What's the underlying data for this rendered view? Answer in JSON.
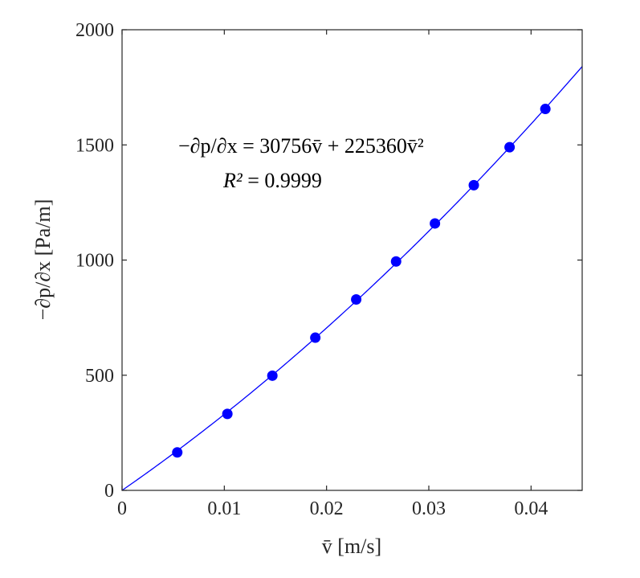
{
  "chart_data": {
    "type": "scatter",
    "xlabel": "v̄ [m/s]",
    "ylabel": "−∂p/∂x [Pa/m]",
    "xlim": [
      0,
      0.045
    ],
    "ylim": [
      0,
      2000
    ],
    "grid": false,
    "x_ticks": [
      0,
      0.01,
      0.02,
      0.03,
      0.04
    ],
    "x_tick_labels": [
      "0",
      "0.01",
      "0.02",
      "0.03",
      "0.04"
    ],
    "y_ticks": [
      0,
      500,
      1000,
      1500,
      2000
    ],
    "y_tick_labels": [
      "0",
      "500",
      "1000",
      "1500",
      "2000"
    ],
    "series": [
      {
        "kind": "points",
        "color": "#0000ff",
        "x": [
          0.0054,
          0.0103,
          0.0147,
          0.0189,
          0.0229,
          0.0268,
          0.0306,
          0.0344,
          0.0379,
          0.0414
        ],
        "y": [
          165,
          332,
          498,
          663,
          829,
          994,
          1159,
          1325,
          1490,
          1656
        ]
      },
      {
        "kind": "fit",
        "color": "#0000ff",
        "a": 30756,
        "b": 225360
      }
    ],
    "annotation": {
      "equation": "−∂p/∂x = 30756v̄ + 225360v̄²",
      "r2_lhs": "R²",
      "r2_value": " = 0.9999"
    }
  }
}
